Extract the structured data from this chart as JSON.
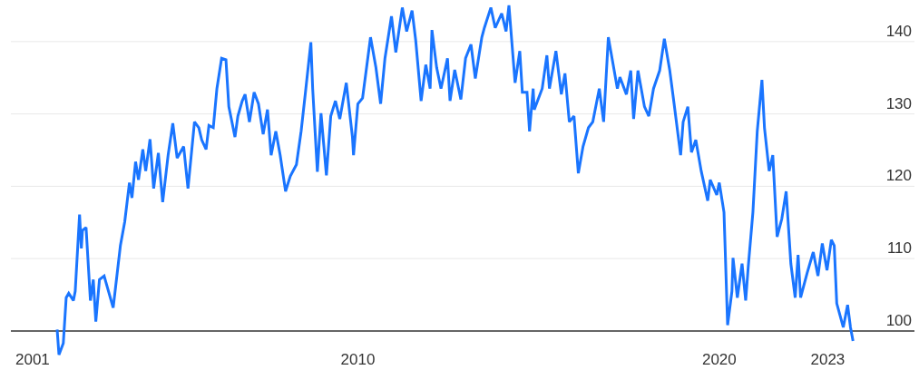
{
  "chart_data": {
    "type": "line",
    "x": [
      2001.68,
      2001.73,
      2001.85,
      2001.93,
      2002.0,
      2002.13,
      2002.18,
      2002.3,
      2002.35,
      2002.38,
      2002.48,
      2002.6,
      2002.68,
      2002.75,
      2002.85,
      2002.98,
      2003.1,
      2003.23,
      2003.43,
      2003.55,
      2003.68,
      2003.75,
      2003.85,
      2003.93,
      2004.05,
      2004.13,
      2004.25,
      2004.35,
      2004.48,
      2004.6,
      2004.75,
      2004.88,
      2005.0,
      2005.18,
      2005.3,
      2005.48,
      2005.6,
      2005.68,
      2005.8,
      2005.88,
      2006.0,
      2006.1,
      2006.23,
      2006.35,
      2006.43,
      2006.6,
      2006.68,
      2006.8,
      2006.88,
      2007.0,
      2007.13,
      2007.25,
      2007.38,
      2007.5,
      2007.6,
      2007.73,
      2007.85,
      2008.0,
      2008.13,
      2008.3,
      2008.43,
      2008.55,
      2008.7,
      2008.75,
      2008.88,
      2008.98,
      2009.13,
      2009.25,
      2009.38,
      2009.5,
      2009.68,
      2009.85,
      2009.88,
      2010.0,
      2010.13,
      2010.23,
      2010.35,
      2010.5,
      2010.63,
      2010.75,
      2010.93,
      2011.05,
      2011.23,
      2011.35,
      2011.5,
      2011.6,
      2011.75,
      2011.88,
      2012.0,
      2012.05,
      2012.18,
      2012.3,
      2012.48,
      2012.55,
      2012.68,
      2012.85,
      2012.98,
      2013.13,
      2013.25,
      2013.43,
      2013.5,
      2013.68,
      2013.8,
      2013.98,
      2014.1,
      2014.18,
      2014.35,
      2014.48,
      2014.55,
      2014.68,
      2014.75,
      2014.85,
      2014.88,
      2015.1,
      2015.23,
      2015.3,
      2015.48,
      2015.63,
      2015.73,
      2015.85,
      2015.98,
      2016.1,
      2016.23,
      2016.38,
      2016.5,
      2016.68,
      2016.8,
      2016.93,
      2017.05,
      2017.18,
      2017.25,
      2017.43,
      2017.55,
      2017.63,
      2017.75,
      2017.93,
      2018.05,
      2018.18,
      2018.35,
      2018.48,
      2018.63,
      2018.75,
      2018.93,
      2019.0,
      2019.13,
      2019.23,
      2019.35,
      2019.5,
      2019.68,
      2019.75,
      2019.93,
      2020.0,
      2020.13,
      2020.23,
      2020.35,
      2020.38,
      2020.5,
      2020.63,
      2020.73,
      2020.8,
      2020.93,
      2021.05,
      2021.18,
      2021.25,
      2021.38,
      2021.48,
      2021.6,
      2021.73,
      2021.85,
      2021.98,
      2022.1,
      2022.18,
      2022.25,
      2022.43,
      2022.6,
      2022.73,
      2022.85,
      2022.98,
      2023.1,
      2023.18,
      2023.25,
      2023.43,
      2023.55,
      2023.63,
      2023.7
    ],
    "series": [
      {
        "color": "#1a75ff",
        "values": [
          100.2,
          96.7,
          98.3,
          104.6,
          105.2,
          104.2,
          105.5,
          116.1,
          111.4,
          113.9,
          114.3,
          104.2,
          107.1,
          101.3,
          107.1,
          107.6,
          105.5,
          103.2,
          111.8,
          115.1,
          120.5,
          118.4,
          123.4,
          120.9,
          125.1,
          122.1,
          126.5,
          119.7,
          124.6,
          117.8,
          124.3,
          128.7,
          123.9,
          125.5,
          119.7,
          128.9,
          128.1,
          126.4,
          125.1,
          128.4,
          128.1,
          133.5,
          137.7,
          137.5,
          131.0,
          126.8,
          129.7,
          131.8,
          132.7,
          128.9,
          133.0,
          131.4,
          127.2,
          130.6,
          124.3,
          127.6,
          124.3,
          119.3,
          121.4,
          123.0,
          127.6,
          133.0,
          139.9,
          133.5,
          122.0,
          130.1,
          121.5,
          129.7,
          131.8,
          129.3,
          134.3,
          126.8,
          124.3,
          131.4,
          132.2,
          136.0,
          140.6,
          136.4,
          131.4,
          137.7,
          143.5,
          138.5,
          144.7,
          141.4,
          144.3,
          140.2,
          131.8,
          136.8,
          133.5,
          141.6,
          136.4,
          133.5,
          137.7,
          131.8,
          136.1,
          132.0,
          137.7,
          139.6,
          134.9,
          140.6,
          141.9,
          144.7,
          141.9,
          143.9,
          141.4,
          145.0,
          134.3,
          138.7,
          133.0,
          133.0,
          127.6,
          133.5,
          130.6,
          133.5,
          138.1,
          133.5,
          138.7,
          132.7,
          135.6,
          128.9,
          129.7,
          121.8,
          125.5,
          128.1,
          128.9,
          133.5,
          128.9,
          140.6,
          137.2,
          133.5,
          135.1,
          132.7,
          136.0,
          129.3,
          136.0,
          131.0,
          129.7,
          133.5,
          136.0,
          140.4,
          136.0,
          131.4,
          124.3,
          128.9,
          131.0,
          124.7,
          126.4,
          122.1,
          118.0,
          120.9,
          118.8,
          120.5,
          116.4,
          100.8,
          105.5,
          110.1,
          104.6,
          109.3,
          104.2,
          108.8,
          116.4,
          127.6,
          134.7,
          128.1,
          122.1,
          124.3,
          113.0,
          115.5,
          119.3,
          109.3,
          104.6,
          110.5,
          104.6,
          108.0,
          110.9,
          107.6,
          112.1,
          108.4,
          112.6,
          111.8,
          103.8,
          100.5,
          103.6,
          100.5,
          98.6
        ]
      }
    ],
    "xlim": [
      2000.4,
      2025.4
    ],
    "xticks": [
      2001,
      2010,
      2020,
      2023
    ],
    "ylim": [
      94.6,
      145.5
    ],
    "yticks": [
      100,
      110,
      120,
      130,
      140
    ],
    "ref_lines": [
      {
        "axis": "y",
        "value": 100,
        "label": null,
        "color": "#333333"
      }
    ],
    "grid": "y",
    "line_style": "solid",
    "marker": "none"
  }
}
